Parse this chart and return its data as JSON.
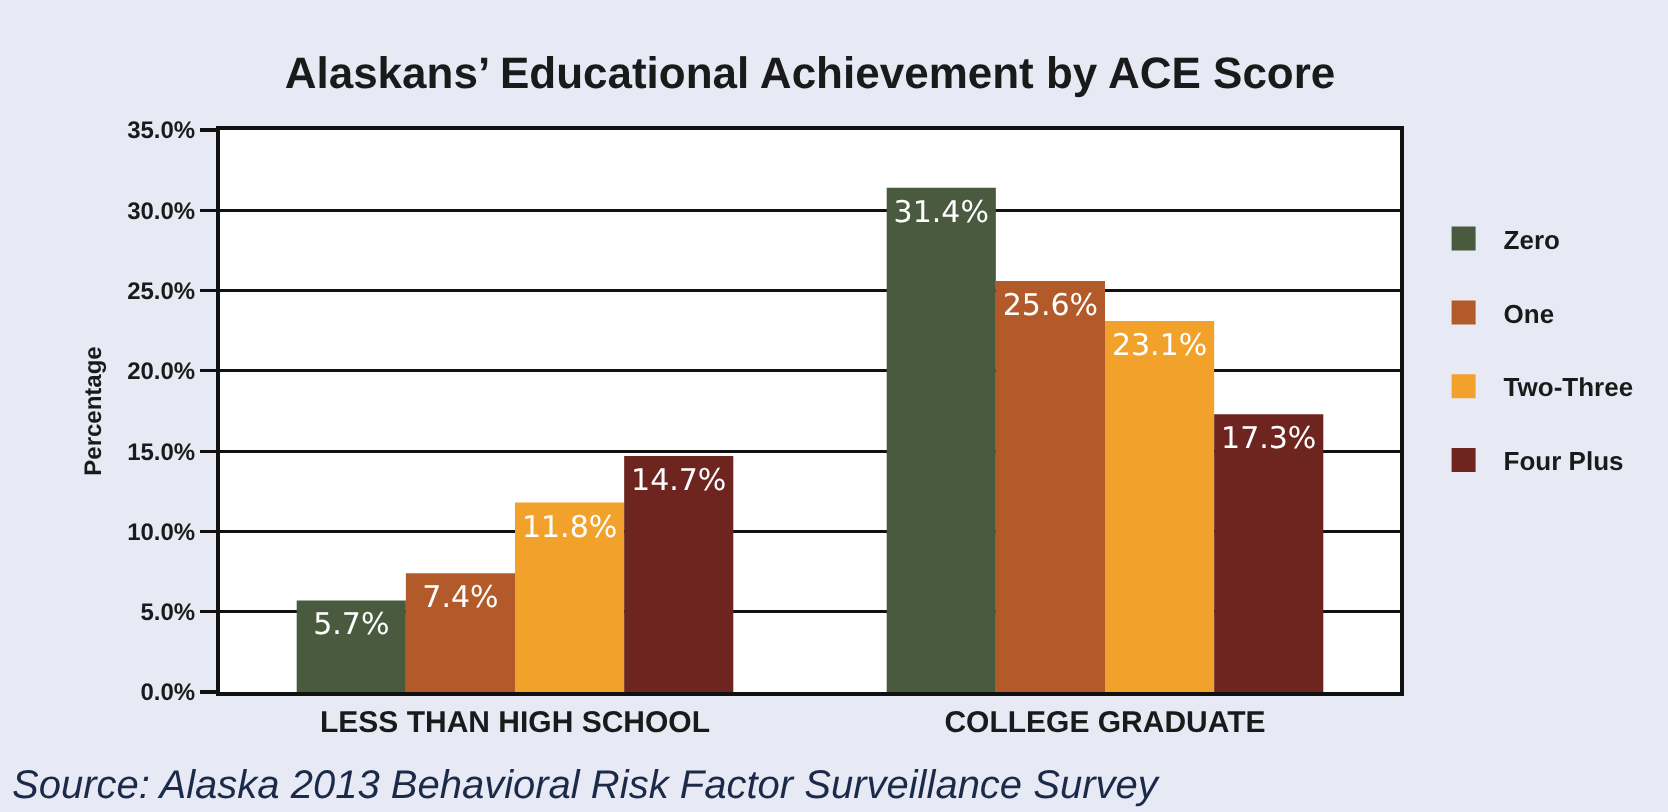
{
  "chart_data": {
    "type": "bar",
    "title": "Alaskans’ Educational Achievement by ACE Score",
    "ylabel": "Percentage",
    "categories": [
      "LESS THAN HIGH SCHOOL",
      "COLLEGE GRADUATE"
    ],
    "series": [
      {
        "name": "Zero",
        "color": "#4a5a3e",
        "values": [
          5.7,
          31.4
        ],
        "value_labels": [
          "5.7%",
          "31.4%"
        ]
      },
      {
        "name": "One",
        "color": "#b35a2a",
        "values": [
          7.4,
          25.6
        ],
        "value_labels": [
          "7.4%",
          "25.6%"
        ]
      },
      {
        "name": "Two-Three",
        "color": "#f2a22a",
        "values": [
          11.8,
          23.1
        ],
        "value_labels": [
          "11.8%",
          "23.1%"
        ]
      },
      {
        "name": "Four Plus",
        "color": "#6e2520",
        "values": [
          14.7,
          17.3
        ],
        "value_labels": [
          "14.7%",
          "17.3%"
        ]
      }
    ],
    "ylim": [
      0,
      35
    ],
    "yticks": [
      {
        "value": 0,
        "label": "0.0%"
      },
      {
        "value": 5,
        "label": "5.0%"
      },
      {
        "value": 10,
        "label": "10.0%"
      },
      {
        "value": 15,
        "label": "15.0%"
      },
      {
        "value": 20,
        "label": "20.0%"
      },
      {
        "value": 25,
        "label": "25.0%"
      },
      {
        "value": 30,
        "label": "30.0%"
      },
      {
        "value": 35,
        "label": "35.0%"
      }
    ],
    "grid": "y",
    "legend": "right",
    "annotations": [
      "Source: Alaska 2013 Behavioral Risk Factor Surveillance Survey"
    ]
  }
}
